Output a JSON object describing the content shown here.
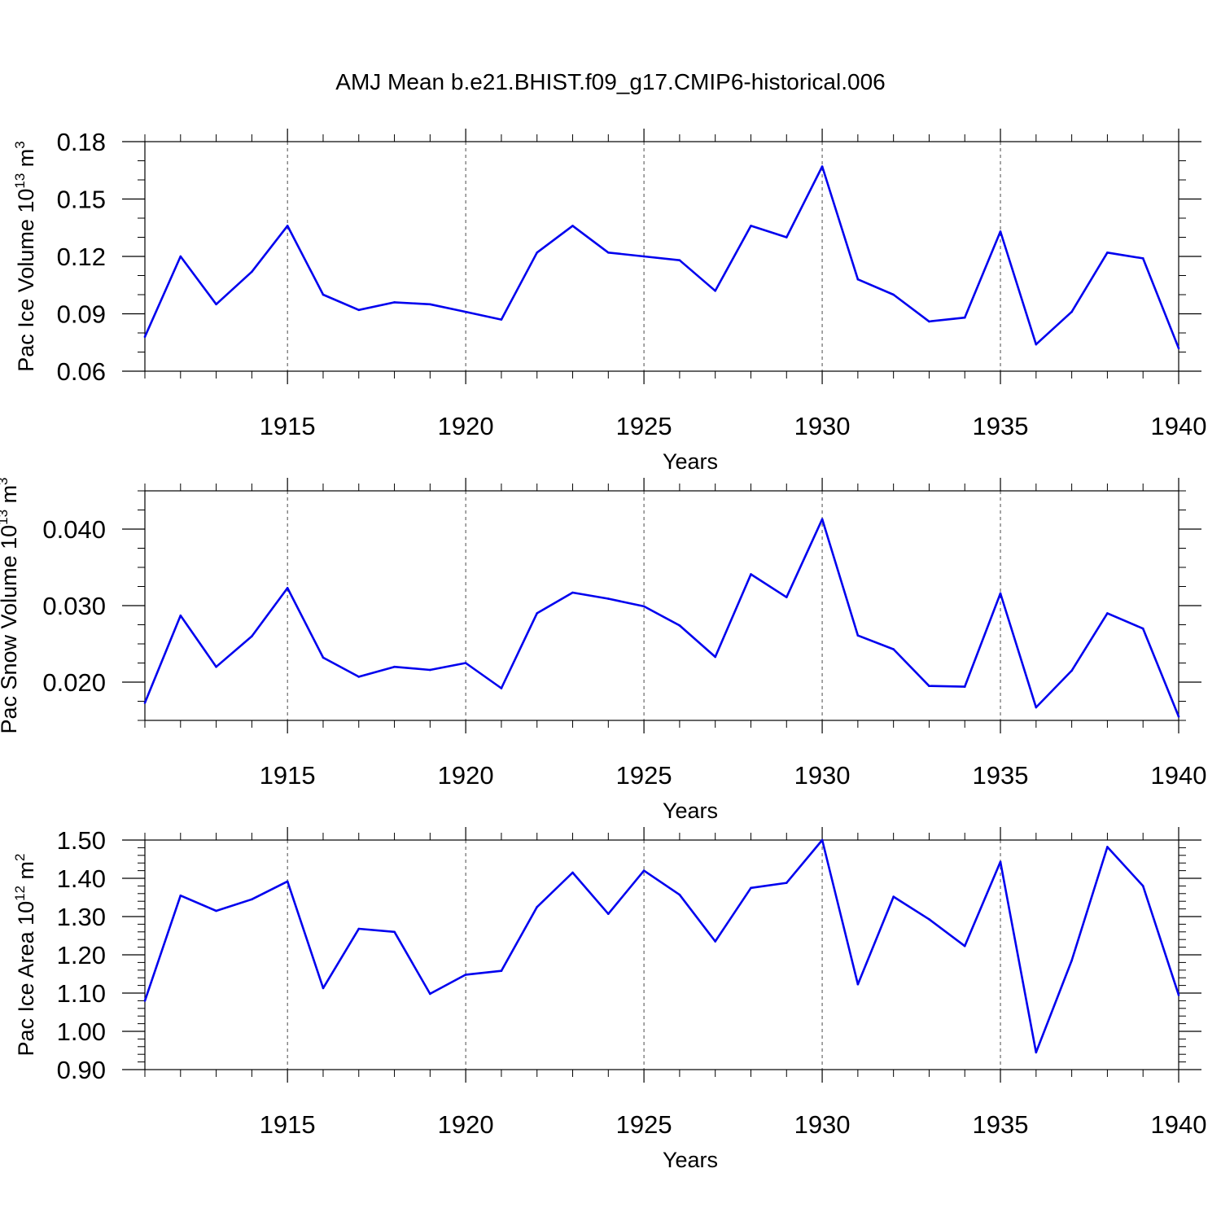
{
  "title": "AMJ Mean b.e21.BHIST.f09_g17.CMIP6-historical.006",
  "colors": {
    "line": "#0000ee",
    "axes": "#000000",
    "background": "#ffffff"
  },
  "chart_data": [
    {
      "type": "line",
      "xlabel": "Years",
      "ylabel_main": "Pac Ice Volume 10",
      "ylabel_exp": "13",
      "ylabel_unit": " m",
      "ylabel_unit_exp": "3",
      "xlim": [
        1911,
        1940
      ],
      "ylim": [
        0.06,
        0.18
      ],
      "yticks": [
        0.06,
        0.09,
        0.12,
        0.15,
        0.18
      ],
      "ytick_labels": [
        "0.06",
        "0.09",
        "0.12",
        "0.15",
        "0.18"
      ],
      "yminor_step": 0.01,
      "xticks": [
        1915,
        1920,
        1925,
        1930,
        1935,
        1940
      ],
      "xtick_labels": [
        "1915",
        "1920",
        "1925",
        "1930",
        "1935",
        "1940"
      ],
      "x": [
        1911,
        1912,
        1913,
        1914,
        1915,
        1916,
        1917,
        1918,
        1919,
        1920,
        1921,
        1922,
        1923,
        1924,
        1925,
        1926,
        1927,
        1928,
        1929,
        1930,
        1931,
        1932,
        1933,
        1934,
        1935,
        1936,
        1937,
        1938,
        1939,
        1940
      ],
      "series": [
        {
          "name": "Pac Ice Volume",
          "values": [
            0.078,
            0.12,
            0.095,
            0.112,
            0.136,
            0.1,
            0.092,
            0.096,
            0.095,
            0.091,
            0.087,
            0.122,
            0.136,
            0.122,
            0.12,
            0.118,
            0.102,
            0.136,
            0.13,
            0.167,
            0.108,
            0.1,
            0.086,
            0.088,
            0.133,
            0.074,
            0.091,
            0.122,
            0.119,
            0.072
          ]
        }
      ]
    },
    {
      "type": "line",
      "xlabel": "Years",
      "ylabel_main": "Pac Snow Volume 10",
      "ylabel_exp": "13",
      "ylabel_unit": " m",
      "ylabel_unit_exp": "3",
      "xlim": [
        1911,
        1940
      ],
      "ylim": [
        0.015,
        0.045
      ],
      "yticks": [
        0.02,
        0.03,
        0.04
      ],
      "ytick_labels": [
        "0.020",
        "0.030",
        "0.040"
      ],
      "yminor_step": 0.0025,
      "xticks": [
        1915,
        1920,
        1925,
        1930,
        1935,
        1940
      ],
      "xtick_labels": [
        "1915",
        "1920",
        "1925",
        "1930",
        "1935",
        "1940"
      ],
      "x": [
        1911,
        1912,
        1913,
        1914,
        1915,
        1916,
        1917,
        1918,
        1919,
        1920,
        1921,
        1922,
        1923,
        1924,
        1925,
        1926,
        1927,
        1928,
        1929,
        1930,
        1931,
        1932,
        1933,
        1934,
        1935,
        1936,
        1937,
        1938,
        1939,
        1940
      ],
      "series": [
        {
          "name": "Pac Snow Volume",
          "values": [
            0.0173,
            0.0287,
            0.022,
            0.026,
            0.0323,
            0.0232,
            0.0207,
            0.022,
            0.0216,
            0.0225,
            0.0192,
            0.029,
            0.0317,
            0.0309,
            0.0299,
            0.0274,
            0.0233,
            0.0341,
            0.0311,
            0.0413,
            0.0261,
            0.0243,
            0.0195,
            0.0194,
            0.0316,
            0.0167,
            0.0215,
            0.029,
            0.027,
            0.0155
          ]
        }
      ]
    },
    {
      "type": "line",
      "xlabel": "Years",
      "ylabel_main": "Pac Ice Area 10",
      "ylabel_exp": "12",
      "ylabel_unit": " m",
      "ylabel_unit_exp": "2",
      "xlim": [
        1911,
        1940
      ],
      "ylim": [
        0.9,
        1.5
      ],
      "yticks": [
        0.9,
        1.0,
        1.1,
        1.2,
        1.3,
        1.4,
        1.5
      ],
      "ytick_labels": [
        "0.90",
        "1.00",
        "1.10",
        "1.20",
        "1.30",
        "1.40",
        "1.50"
      ],
      "yminor_step": 0.02,
      "xticks": [
        1915,
        1920,
        1925,
        1930,
        1935,
        1940
      ],
      "xtick_labels": [
        "1915",
        "1920",
        "1925",
        "1930",
        "1935",
        "1940"
      ],
      "x": [
        1911,
        1912,
        1913,
        1914,
        1915,
        1916,
        1917,
        1918,
        1919,
        1920,
        1921,
        1922,
        1923,
        1924,
        1925,
        1926,
        1927,
        1928,
        1929,
        1930,
        1931,
        1932,
        1933,
        1934,
        1935,
        1936,
        1937,
        1938,
        1939,
        1940
      ],
      "series": [
        {
          "name": "Pac Ice Area",
          "values": [
            1.08,
            1.355,
            1.315,
            1.345,
            1.392,
            1.113,
            1.268,
            1.26,
            1.098,
            1.148,
            1.158,
            1.325,
            1.415,
            1.307,
            1.42,
            1.357,
            1.235,
            1.375,
            1.388,
            1.5,
            1.123,
            1.352,
            1.293,
            1.223,
            1.443,
            0.945,
            1.185,
            1.482,
            1.38,
            1.095
          ]
        }
      ]
    }
  ]
}
